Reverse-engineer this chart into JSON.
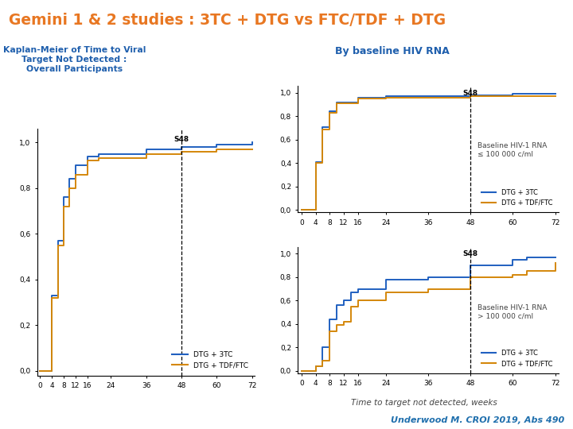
{
  "title": "Gemini 1 & 2 studies : 3TC + DTG vs FTC/TDF + DTG",
  "title_color": "#E87722",
  "left_panel_title": "Kaplan-Meier of Time to Viral\nTarget Not Detected :\nOverall Participants",
  "right_panel_title": "By baseline HIV RNA",
  "panel_title_color": "#1F5FAD",
  "s48_label": "S48",
  "xlabel": "Time to target not detected, weeks",
  "xlabel_color": "#444444",
  "footer": "Underwood M. CROI 2019, Abs 490",
  "footer_color": "#1F6FAD",
  "blue_color": "#2060C0",
  "orange_color": "#D4870A",
  "legend_dtg3tc": "DTG + 3TC",
  "legend_dtgtdf": "DTG + TDF/FTC",
  "annot_low": "Baseline HIV-1 RNA\n≤ 100 000 c/ml",
  "annot_high": "Baseline HIV-1 RNA\n> 100 000 c/ml",
  "xticks": [
    0,
    4,
    8,
    12,
    16,
    24,
    36,
    48,
    60,
    72
  ],
  "yticks": [
    0,
    0.2,
    0.4,
    0.6,
    0.8,
    1.0
  ],
  "overall_x": [
    0,
    4,
    4,
    6,
    8,
    10,
    12,
    14,
    16,
    20,
    24,
    36,
    48,
    60,
    72
  ],
  "overall_blue": [
    0,
    0,
    0.33,
    0.57,
    0.76,
    0.84,
    0.9,
    0.9,
    0.94,
    0.95,
    0.95,
    0.97,
    0.98,
    0.99,
    1.0
  ],
  "overall_orange": [
    0,
    0,
    0.32,
    0.55,
    0.72,
    0.8,
    0.86,
    0.86,
    0.92,
    0.93,
    0.93,
    0.95,
    0.96,
    0.97,
    0.97
  ],
  "low_x": [
    0,
    4,
    4,
    6,
    8,
    10,
    12,
    14,
    16,
    24,
    36,
    48,
    60,
    72
  ],
  "low_blue": [
    0,
    0,
    0.41,
    0.71,
    0.84,
    0.92,
    0.92,
    0.92,
    0.96,
    0.97,
    0.97,
    0.98,
    0.99,
    0.99
  ],
  "low_orange": [
    0,
    0,
    0.4,
    0.69,
    0.83,
    0.91,
    0.91,
    0.91,
    0.95,
    0.96,
    0.96,
    0.97,
    0.97,
    0.97
  ],
  "high_x": [
    0,
    4,
    4,
    6,
    8,
    10,
    12,
    14,
    16,
    24,
    36,
    48,
    60,
    64,
    72
  ],
  "high_blue": [
    0,
    0,
    0.04,
    0.2,
    0.44,
    0.56,
    0.6,
    0.67,
    0.7,
    0.78,
    0.8,
    0.9,
    0.95,
    0.97,
    0.97
  ],
  "high_orange": [
    0,
    0,
    0.04,
    0.09,
    0.34,
    0.39,
    0.42,
    0.55,
    0.6,
    0.67,
    0.7,
    0.8,
    0.82,
    0.85,
    0.92
  ],
  "background_color": "#FFFFFF"
}
